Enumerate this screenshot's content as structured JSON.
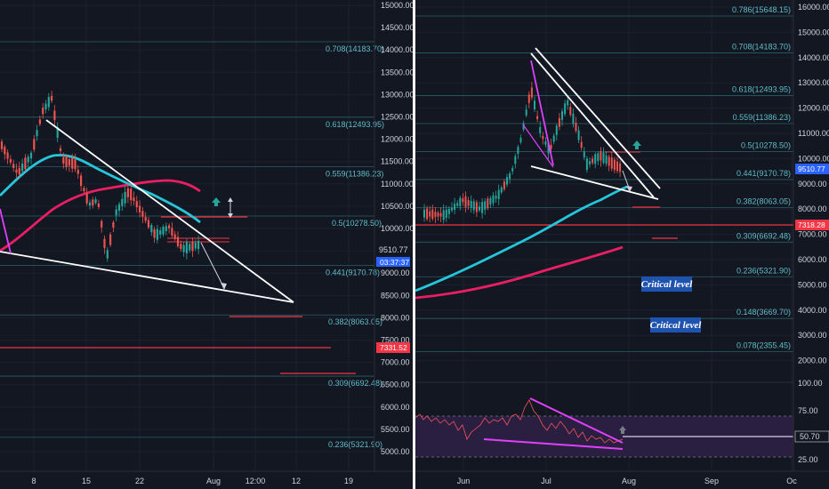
{
  "left_chart": {
    "type": "candlestick",
    "price_axis": [
      "15000.00",
      "14500.00",
      "14000.00",
      "13500.00",
      "13000.00",
      "12500.00",
      "12000.00",
      "11500.00",
      "11000.00",
      "10500.00",
      "10000.00",
      "9500.00",
      "9000.00",
      "8500.00",
      "8000.00",
      "7500.00",
      "7000.00",
      "6500.00",
      "6000.00",
      "5500.00",
      "5000.00"
    ],
    "time_axis": [
      "8",
      "15",
      "22",
      "Aug",
      "12:00",
      "12",
      "19"
    ],
    "fib_levels": [
      "0.708(14183.70)",
      "0.618(12493.95)",
      "0.559(11386.23)",
      "0.5(10278.50)",
      "0.441(9170.78)",
      "0.382(8063.05)",
      "0.309(6692.48)",
      "0.236(5321.90)"
    ],
    "current_price": "9510.77",
    "countdown": "03:37:37",
    "marked_price": "7331.52"
  },
  "right_chart": {
    "type": "candlestick",
    "price_axis": [
      "16000.00",
      "15000.00",
      "14000.00",
      "13000.00",
      "12000.00",
      "11000.00",
      "10000.00",
      "9000.00",
      "8000.00",
      "7000.00",
      "6000.00",
      "5000.00",
      "4000.00",
      "3000.00",
      "2000.00"
    ],
    "time_axis": [
      "Jun",
      "Jul",
      "Aug",
      "Sep",
      "Oc"
    ],
    "fib_levels": [
      "0.786(15648.15)",
      "0.708(14183.70)",
      "0.618(12493.95)",
      "0.559(11386.23)",
      "0.5(10278.50)",
      "0.441(9170.78)",
      "0.382(8063.05)",
      "0.309(6692.48)",
      "0.236(5321.90)",
      "0.148(3669.70)",
      "0.078(2355.45)"
    ],
    "current_price": "9510.77",
    "marked_price": "7318.28",
    "annotations": [
      "Critical level",
      "Critical level"
    ]
  },
  "oscillator": {
    "axis": [
      "100.00",
      "75.00",
      "25.00"
    ],
    "value_label": "50.70"
  },
  "chart_data": [
    {
      "type": "candlestick",
      "title": "",
      "ylim": [
        4800,
        15100
      ],
      "fib_values": [
        14183.7,
        12493.95,
        11386.23,
        10278.5,
        9170.78,
        8063.05,
        6692.48,
        5321.9
      ],
      "current_price": 9510.77,
      "marked_price": 7331.52,
      "grid": true
    },
    {
      "type": "candlestick",
      "title": "",
      "ylim": [
        1800,
        16200
      ],
      "fib_values": [
        15648.15,
        14183.7,
        12493.95,
        11386.23,
        10278.5,
        9170.78,
        8063.05,
        6692.48,
        5321.9,
        3669.7,
        2355.45
      ],
      "current_price": 9510.77,
      "marked_price": 7318.28,
      "grid": true
    },
    {
      "type": "line",
      "title": "",
      "ylim": [
        20,
        100
      ],
      "bands": [
        30,
        70
      ],
      "value": 50.7
    }
  ]
}
